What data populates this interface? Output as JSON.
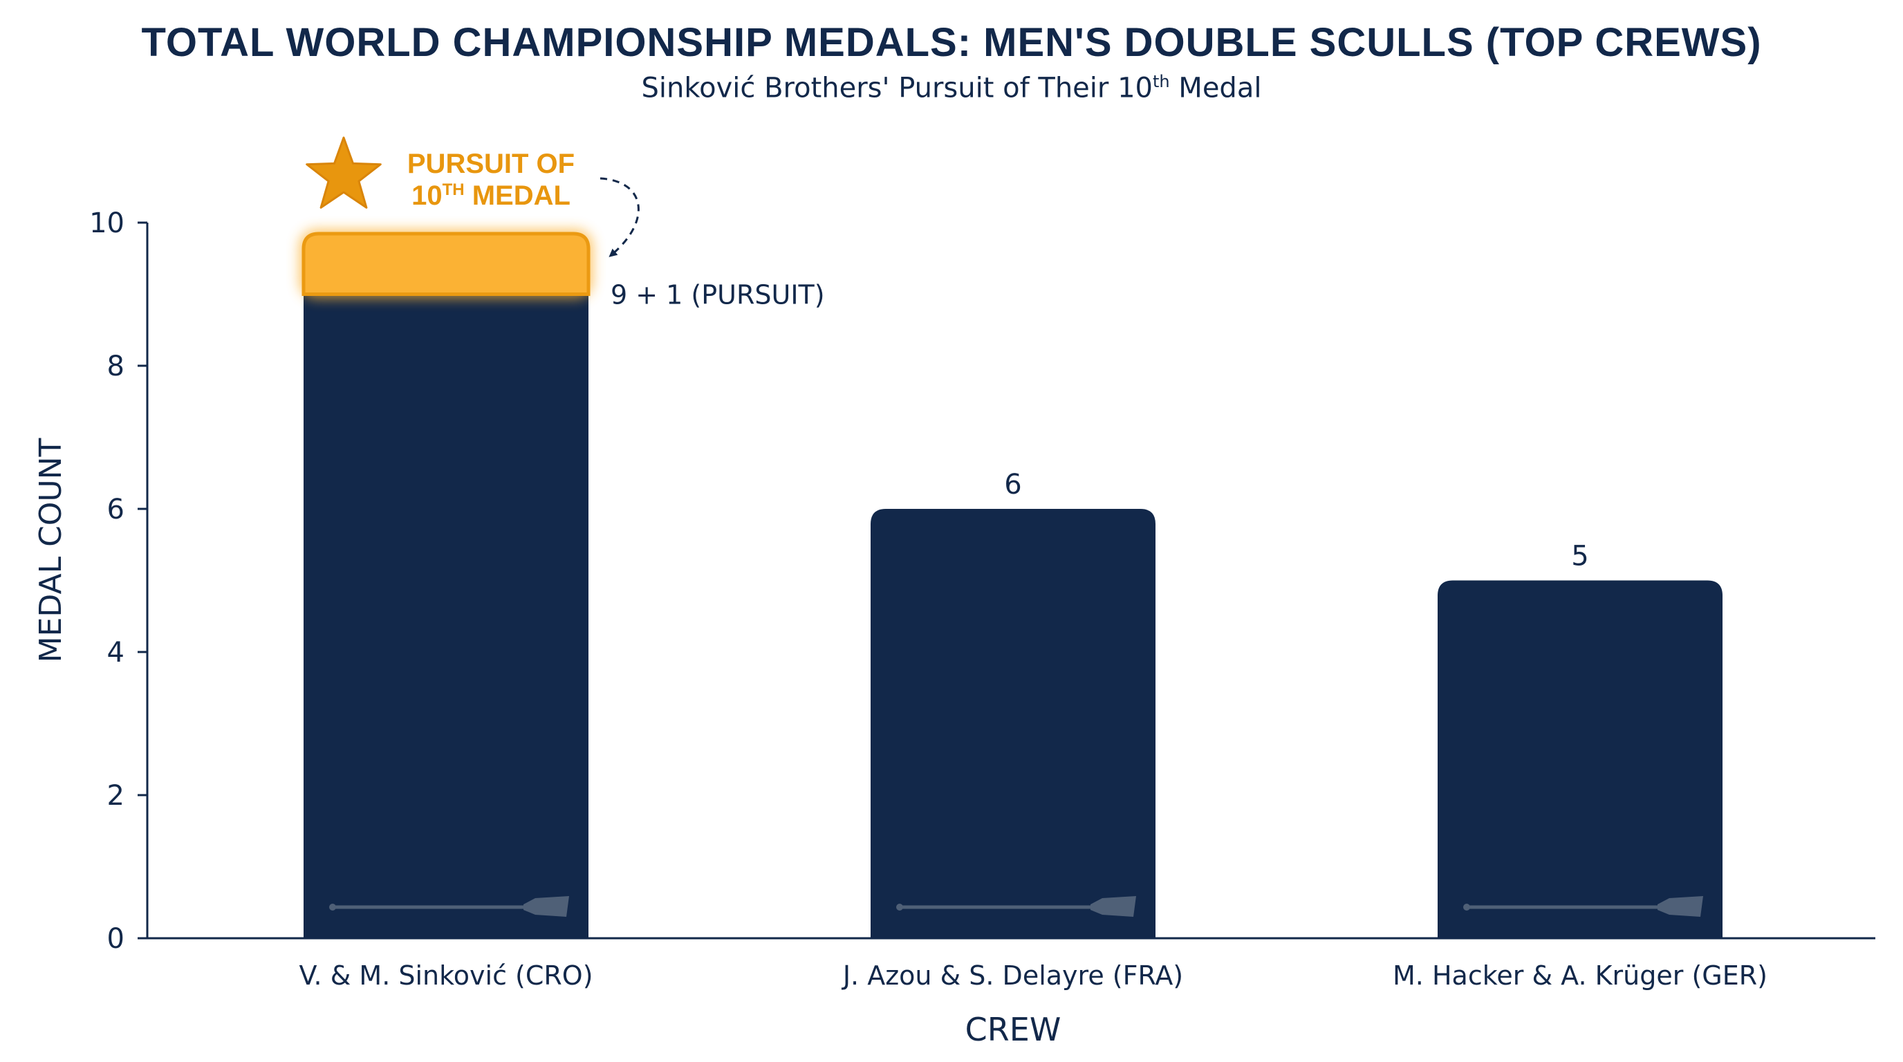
{
  "chart_data": {
    "type": "bar",
    "title": "TOTAL WORLD CHAMPIONSHIP MEDALS: MEN'S DOUBLE SCULLS (TOP CREWS)",
    "subtitle": {
      "text": "Sinković Brothers' Pursuit of Their 10",
      "superscript": "th",
      "suffix": " Medal"
    },
    "xlabel": "CREW",
    "ylabel": "MEDAL COUNT",
    "ylim": [
      0,
      10
    ],
    "yticks": [
      0,
      2,
      4,
      6,
      8,
      10
    ],
    "categories": [
      "V. & M. Sinković (CRO)",
      "J. Azou & S. Delayre (FRA)",
      "M. Hacker & A. Krüger (GER)"
    ],
    "values": [
      9,
      6,
      5
    ],
    "data_labels": [
      "9 + 1 (PURSUIT)",
      "6",
      "5"
    ],
    "pursuit": {
      "category_index": 0,
      "extra": 1
    },
    "annotation": {
      "line1": "PURSUIT OF",
      "line2_number": "10",
      "line2_superscript": "TH",
      "line2_suffix": " MEDAL"
    },
    "grid": false,
    "legend": "none",
    "colors": {
      "bar": "#12284a",
      "pursuit": "#fbb234",
      "pursuit_edge": "#eb9a12",
      "accent_text": "#e8960e",
      "oar": "#5a6a80"
    },
    "icons": {
      "annotation": "star-icon",
      "bar_decoration": "oar-icon"
    }
  }
}
